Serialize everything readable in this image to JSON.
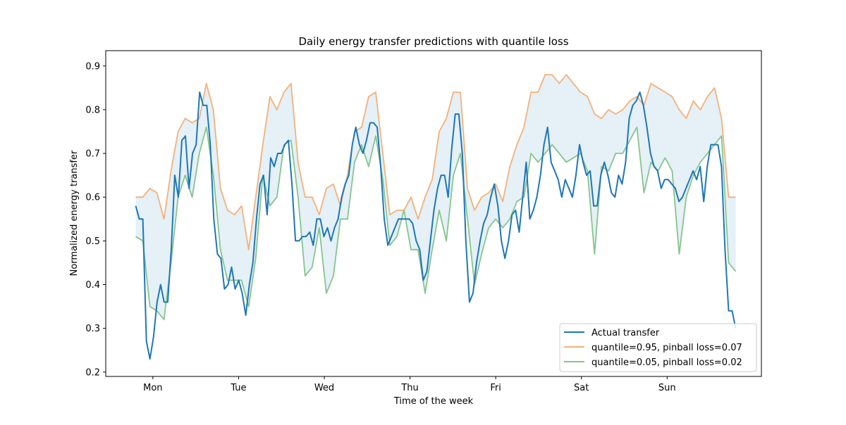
{
  "chart_data": {
    "type": "line",
    "title": "Daily energy transfer predictions with quantile loss",
    "xlabel": "Time of the week",
    "ylabel": "Normalized energy transfer",
    "x_tick_labels": [
      "Mon",
      "Tue",
      "Wed",
      "Thu",
      "Fri",
      "Sat",
      "Sun"
    ],
    "x_range": [
      -0.2,
      6.8
    ],
    "xlim": [
      -0.55,
      7.1
    ],
    "ylim": [
      0.19,
      0.935
    ],
    "y_ticks": [
      0.2,
      0.3,
      0.4,
      0.5,
      0.6,
      0.7,
      0.8,
      0.9
    ],
    "grid": false,
    "legend_position": "lower right",
    "band_fill_color": "#cfe3f0",
    "series": [
      {
        "name": "Actual transfer",
        "color": "#1f77b4",
        "values": [
          0.58,
          0.55,
          0.55,
          0.27,
          0.23,
          0.28,
          0.36,
          0.4,
          0.36,
          0.36,
          0.48,
          0.65,
          0.6,
          0.73,
          0.74,
          0.62,
          0.7,
          0.72,
          0.84,
          0.81,
          0.81,
          0.72,
          0.55,
          0.47,
          0.46,
          0.39,
          0.4,
          0.44,
          0.39,
          0.41,
          0.38,
          0.33,
          0.4,
          0.45,
          0.55,
          0.63,
          0.65,
          0.56,
          0.69,
          0.67,
          0.7,
          0.7,
          0.72,
          0.73,
          0.63,
          0.5,
          0.5,
          0.51,
          0.51,
          0.52,
          0.49,
          0.55,
          0.55,
          0.51,
          0.53,
          0.5,
          0.53,
          0.55,
          0.6,
          0.63,
          0.65,
          0.72,
          0.76,
          0.72,
          0.7,
          0.73,
          0.77,
          0.77,
          0.76,
          0.67,
          0.55,
          0.49,
          0.51,
          0.53,
          0.55,
          0.55,
          0.55,
          0.55,
          0.54,
          0.5,
          0.48,
          0.41,
          0.43,
          0.5,
          0.57,
          0.62,
          0.65,
          0.65,
          0.6,
          0.71,
          0.79,
          0.79,
          0.7,
          0.5,
          0.36,
          0.38,
          0.45,
          0.5,
          0.54,
          0.56,
          0.6,
          0.63,
          0.58,
          0.5,
          0.46,
          0.5,
          0.56,
          0.57,
          0.52,
          0.6,
          0.68,
          0.55,
          0.57,
          0.6,
          0.65,
          0.72,
          0.76,
          0.68,
          0.66,
          0.64,
          0.6,
          0.64,
          0.62,
          0.6,
          0.65,
          0.72,
          0.68,
          0.65,
          0.66,
          0.58,
          0.58,
          0.65,
          0.68,
          0.65,
          0.61,
          0.6,
          0.65,
          0.63,
          0.68,
          0.78,
          0.81,
          0.82,
          0.84,
          0.81,
          0.76,
          0.7,
          0.67,
          0.66,
          0.62,
          0.64,
          0.64,
          0.63,
          0.62,
          0.59,
          0.6,
          0.62,
          0.64,
          0.66,
          0.64,
          0.67,
          0.59,
          0.67,
          0.72,
          0.72,
          0.72,
          0.67,
          0.48,
          0.34,
          0.34,
          0.3
        ]
      },
      {
        "name": "quantile=0.95, pinball loss=0.07",
        "color": "#f2b27a",
        "values": [
          0.6,
          0.6,
          0.62,
          0.61,
          0.55,
          0.66,
          0.75,
          0.78,
          0.77,
          0.78,
          0.86,
          0.8,
          0.62,
          0.57,
          0.56,
          0.58,
          0.48,
          0.6,
          0.72,
          0.83,
          0.8,
          0.84,
          0.86,
          0.68,
          0.6,
          0.6,
          0.56,
          0.62,
          0.63,
          0.58,
          0.65,
          0.75,
          0.76,
          0.83,
          0.84,
          0.7,
          0.56,
          0.57,
          0.57,
          0.6,
          0.55,
          0.6,
          0.64,
          0.75,
          0.78,
          0.84,
          0.84,
          0.62,
          0.57,
          0.6,
          0.61,
          0.63,
          0.59,
          0.67,
          0.72,
          0.76,
          0.84,
          0.84,
          0.88,
          0.88,
          0.86,
          0.88,
          0.86,
          0.84,
          0.83,
          0.79,
          0.78,
          0.8,
          0.79,
          0.8,
          0.82,
          0.83,
          0.81,
          0.86,
          0.85,
          0.84,
          0.83,
          0.8,
          0.78,
          0.82,
          0.8,
          0.83,
          0.85,
          0.78,
          0.6,
          0.6
        ]
      },
      {
        "name": "quantile=0.05, pinball loss=0.02",
        "color": "#86c58c",
        "values": [
          0.51,
          0.5,
          0.35,
          0.34,
          0.32,
          0.45,
          0.6,
          0.65,
          0.6,
          0.7,
          0.76,
          0.65,
          0.48,
          0.41,
          0.41,
          0.41,
          0.35,
          0.46,
          0.65,
          0.58,
          0.6,
          0.72,
          0.73,
          0.6,
          0.42,
          0.44,
          0.53,
          0.38,
          0.42,
          0.55,
          0.55,
          0.68,
          0.72,
          0.67,
          0.74,
          0.64,
          0.49,
          0.51,
          0.57,
          0.48,
          0.48,
          0.38,
          0.48,
          0.57,
          0.5,
          0.65,
          0.7,
          0.55,
          0.4,
          0.47,
          0.53,
          0.55,
          0.53,
          0.55,
          0.59,
          0.6,
          0.7,
          0.68,
          0.7,
          0.72,
          0.7,
          0.68,
          0.69,
          0.7,
          0.66,
          0.47,
          0.67,
          0.66,
          0.7,
          0.7,
          0.73,
          0.76,
          0.61,
          0.68,
          0.66,
          0.69,
          0.66,
          0.47,
          0.6,
          0.65,
          0.68,
          0.7,
          0.72,
          0.74,
          0.45,
          0.43
        ]
      }
    ]
  }
}
